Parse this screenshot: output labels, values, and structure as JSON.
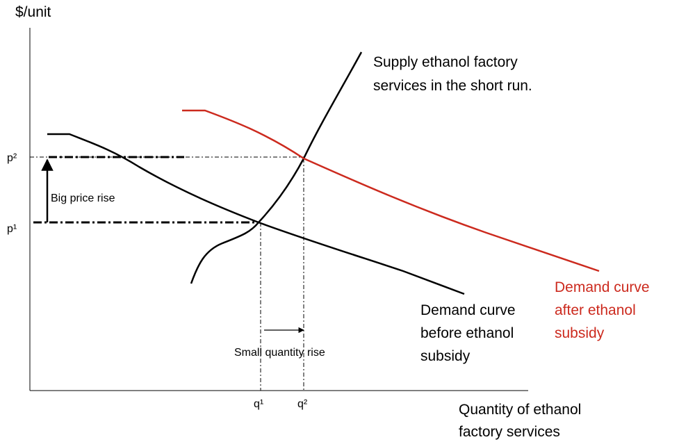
{
  "y_axis_label": "$/unit",
  "x_axis_label": [
    "Quantity of ethanol",
    "factory services"
  ],
  "supply_label": [
    "Supply ethanol factory",
    "services in the short run."
  ],
  "demand_before_label": [
    "Demand curve",
    "before ethanol",
    "subsidy"
  ],
  "demand_after_label": [
    "Demand curve",
    "after ethanol",
    "subsidy"
  ],
  "price_labels": [
    "p²",
    "p¹"
  ],
  "quantity_labels": [
    "q¹",
    "q²"
  ],
  "big_price_rise": "Big price rise",
  "small_quantity_rise": "Small quantity rise"
}
